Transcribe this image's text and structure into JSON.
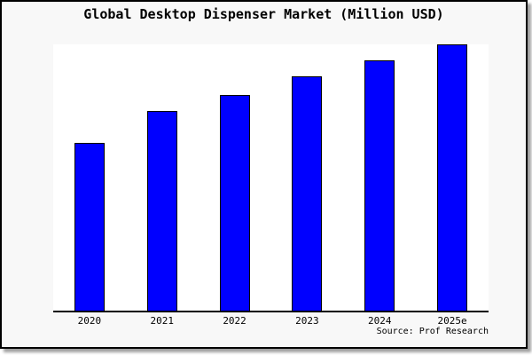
{
  "chart_data": {
    "type": "bar",
    "title": "Global Desktop Dispenser Market (Million USD)",
    "categories": [
      "2020",
      "2021",
      "2022",
      "2023",
      "2024",
      "2025e"
    ],
    "values": [
      63,
      75,
      81,
      88,
      94,
      100
    ],
    "xlabel": "",
    "ylabel": "",
    "ylim": [
      0,
      100
    ],
    "values_unit": "relative (no y-axis scale shown; estimated from bar heights)",
    "y_axis_visible": false,
    "grid": false,
    "legend": false,
    "bar_color": "#0000ff",
    "bar_border_color": "#000000"
  },
  "source": "Source: Prof Research",
  "colors": {
    "background": "#f8f8f8",
    "plot_background": "#ffffff",
    "bar": "#0000ff",
    "bar_border": "#000000",
    "frame_border": "#000000",
    "axis_line": "#000000",
    "text": "#000000",
    "shadow": "#a0a0a0"
  }
}
